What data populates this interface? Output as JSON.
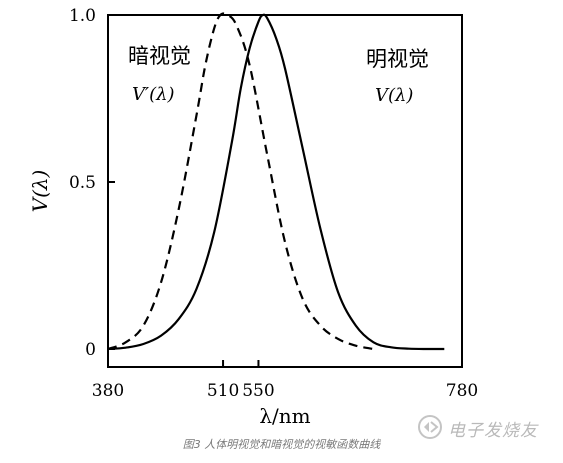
{
  "chart_data": {
    "type": "line",
    "xlabel": "λ/nm",
    "ylabel": "V(λ)",
    "xlim": [
      380,
      780
    ],
    "ylim": [
      0,
      1.0
    ],
    "x_ticks": [
      "380",
      "510",
      "550",
      "780"
    ],
    "y_ticks": [
      "0",
      "0.5",
      "1.0"
    ],
    "grid": false,
    "series": [
      {
        "name": "暗视觉",
        "formula": "V′(λ)",
        "style": "dashed",
        "color": "#000000",
        "x": [
          380,
          400,
          420,
          440,
          460,
          480,
          490,
          500,
          507,
          515,
          525,
          540,
          560,
          580,
          600,
          620,
          640,
          660,
          680
        ],
        "y": [
          0.0,
          0.02,
          0.07,
          0.2,
          0.42,
          0.7,
          0.85,
          0.96,
          1.0,
          1.0,
          0.97,
          0.85,
          0.58,
          0.32,
          0.15,
          0.07,
          0.03,
          0.01,
          0.0
        ]
      },
      {
        "name": "明视觉",
        "formula": "V(λ)",
        "style": "solid",
        "color": "#000000",
        "x": [
          380,
          400,
          420,
          440,
          460,
          480,
          500,
          520,
          530,
          540,
          550,
          555,
          560,
          570,
          580,
          600,
          620,
          640,
          660,
          680,
          700,
          720,
          740,
          760
        ],
        "y": [
          0.0,
          0.004,
          0.015,
          0.04,
          0.09,
          0.18,
          0.35,
          0.62,
          0.78,
          0.9,
          0.98,
          1.0,
          0.99,
          0.93,
          0.84,
          0.6,
          0.36,
          0.17,
          0.07,
          0.02,
          0.005,
          0.001,
          0.0,
          0.0
        ]
      }
    ]
  },
  "caption": "图3 人体明视觉和暗视觉的视敏函数曲线",
  "watermark": "电子发烧友"
}
